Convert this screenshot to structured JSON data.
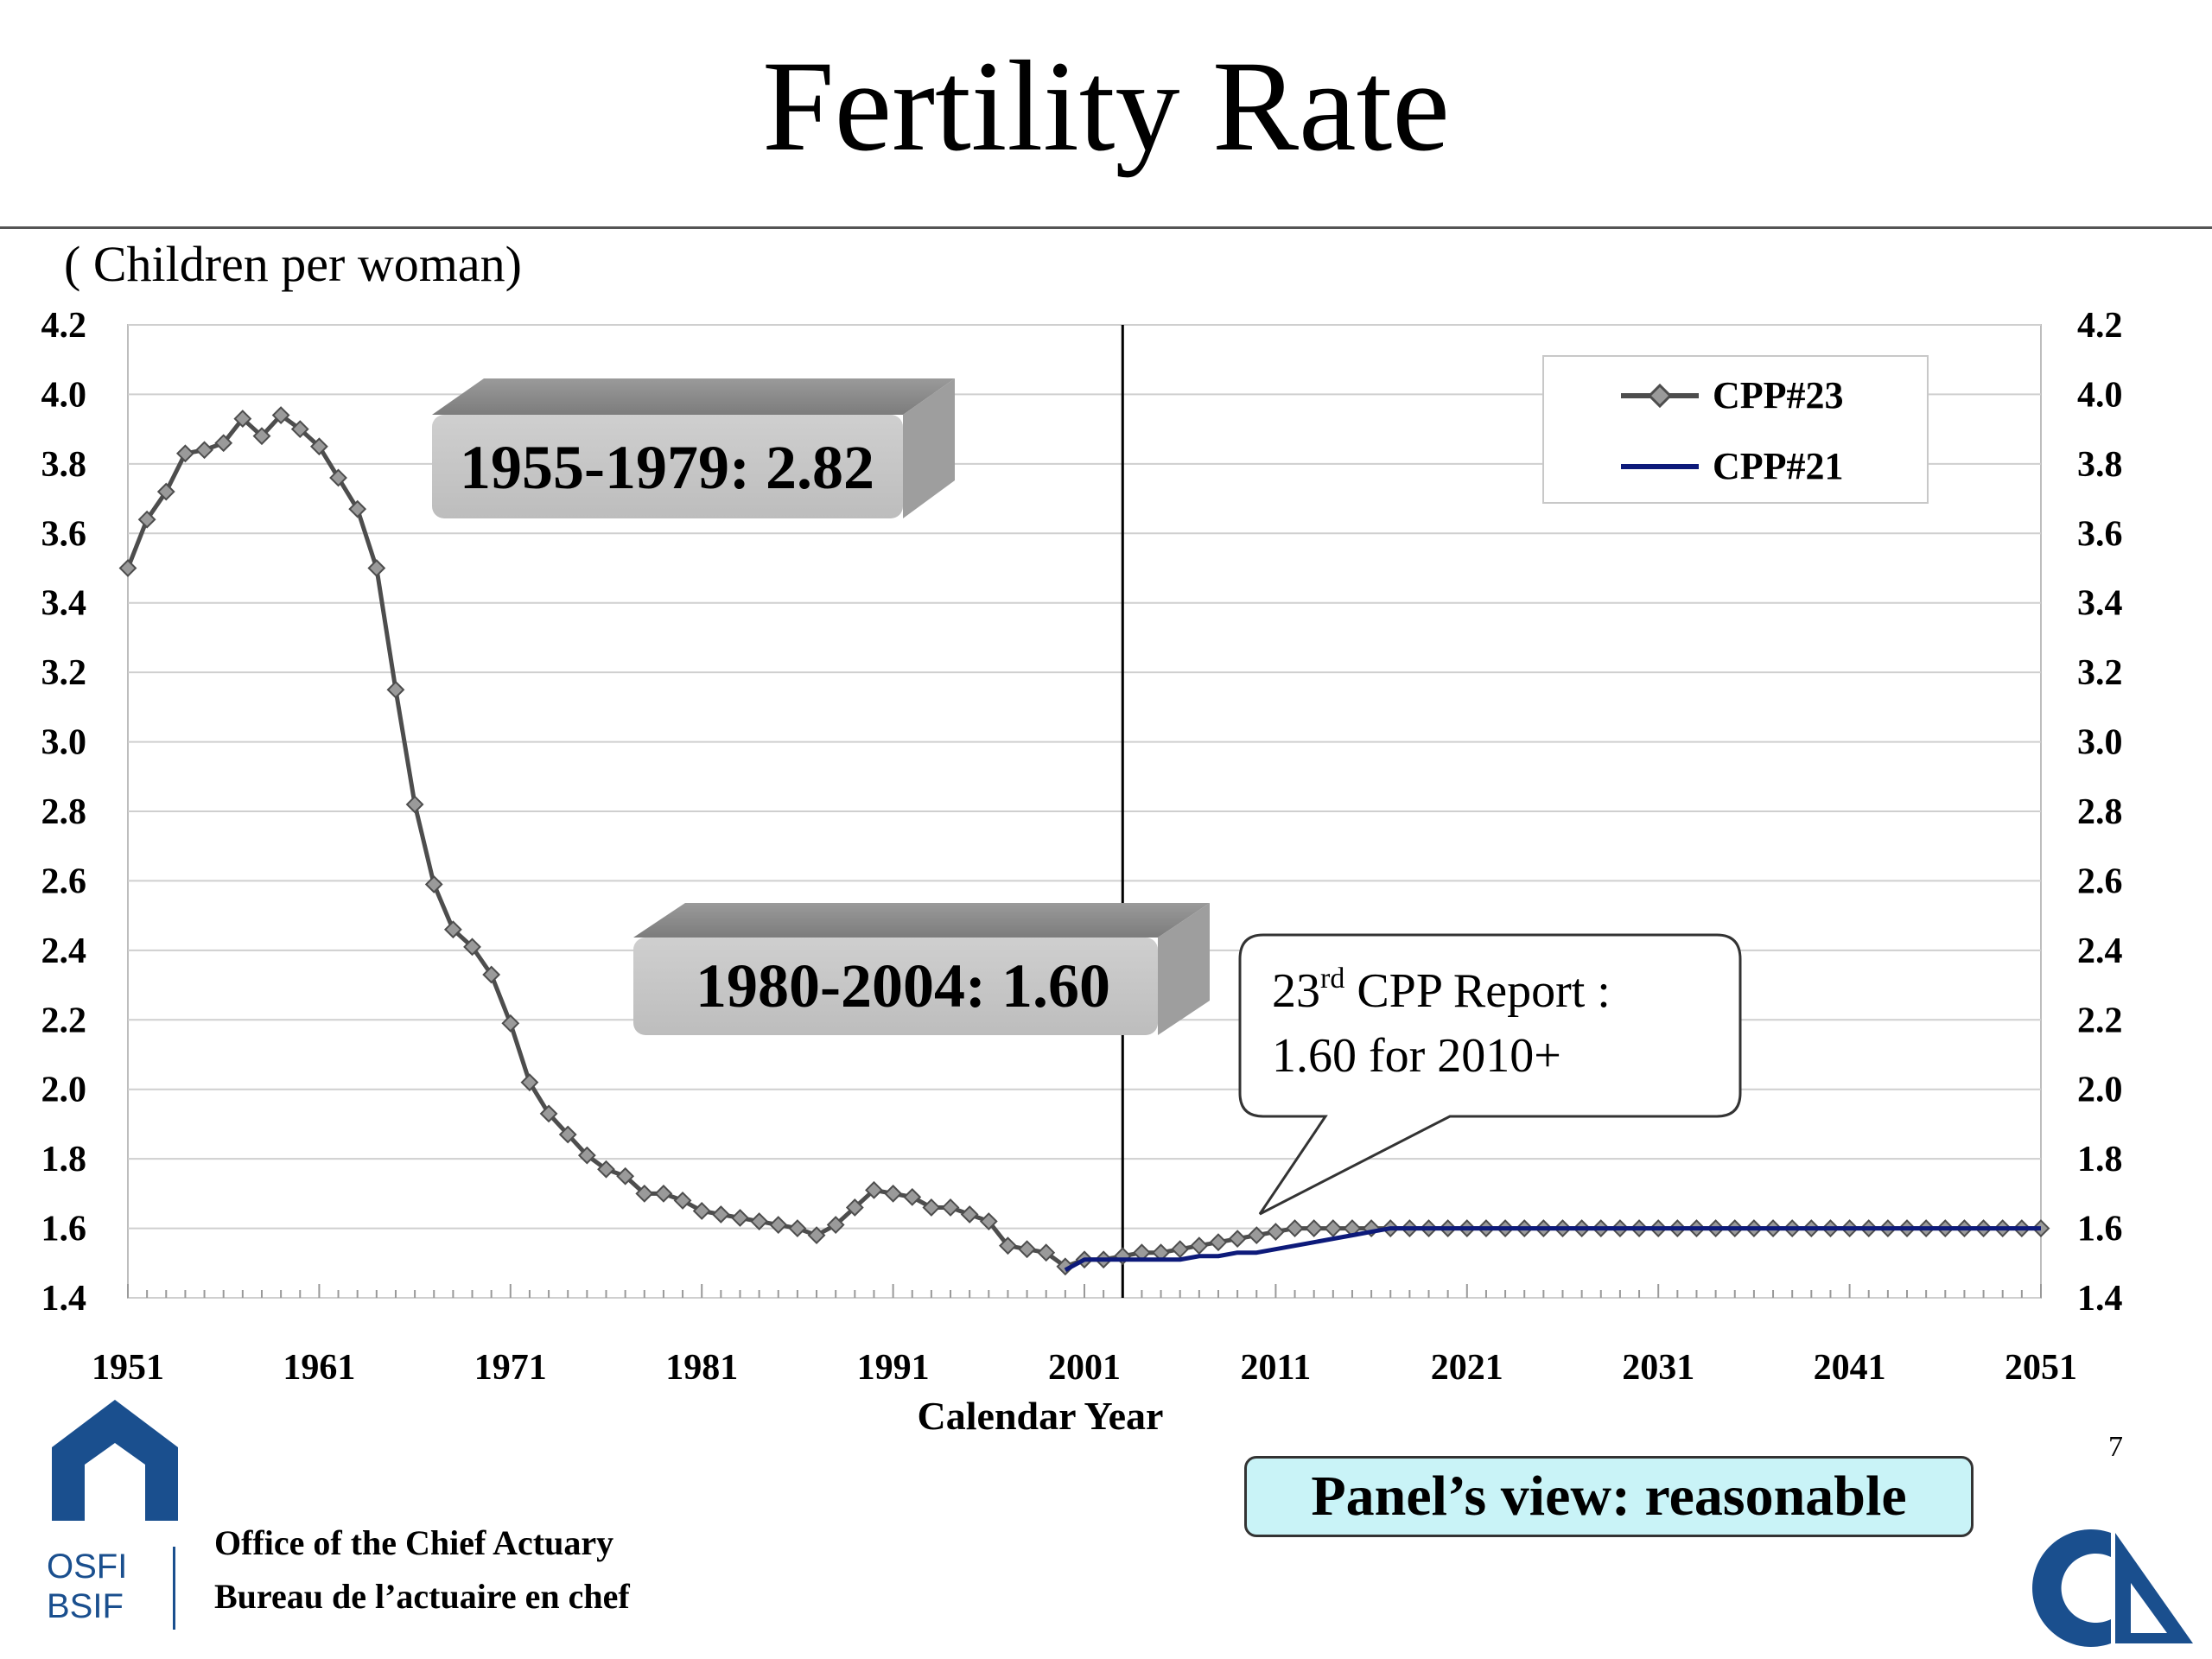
{
  "title": "Fertility Rate",
  "unit_label": "( Children per woman)",
  "chart_data": {
    "type": "line",
    "xlabel": "Calendar Year",
    "ylabel": "",
    "xlim": [
      1951,
      2051
    ],
    "ylim": [
      1.4,
      4.2
    ],
    "x_ticks": [
      "1951",
      "1961",
      "1971",
      "1981",
      "1991",
      "2001",
      "2011",
      "2021",
      "2031",
      "2041",
      "2051"
    ],
    "y_ticks": [
      "1.4",
      "1.6",
      "1.8",
      "2.0",
      "2.2",
      "2.4",
      "2.6",
      "2.8",
      "3.0",
      "3.2",
      "3.4",
      "3.6",
      "3.8",
      "4.0",
      "4.2"
    ],
    "vertical_line_year": 2003,
    "series": [
      {
        "name": "CPP#23",
        "color": "#4d4d4d",
        "marker": "diamond",
        "x": [
          1951,
          1952,
          1953,
          1954,
          1955,
          1956,
          1957,
          1958,
          1959,
          1960,
          1961,
          1962,
          1963,
          1964,
          1965,
          1966,
          1967,
          1968,
          1969,
          1970,
          1971,
          1972,
          1973,
          1974,
          1975,
          1976,
          1977,
          1978,
          1979,
          1980,
          1981,
          1982,
          1983,
          1984,
          1985,
          1986,
          1987,
          1988,
          1989,
          1990,
          1991,
          1992,
          1993,
          1994,
          1995,
          1996,
          1997,
          1998,
          1999,
          2000,
          2001,
          2002,
          2003,
          2004,
          2005,
          2006,
          2007,
          2008,
          2009,
          2010,
          2011,
          2012,
          2013,
          2014,
          2015,
          2016,
          2017,
          2018,
          2019,
          2020,
          2021,
          2022,
          2023,
          2024,
          2025,
          2026,
          2027,
          2028,
          2029,
          2030,
          2031,
          2032,
          2033,
          2034,
          2035,
          2036,
          2037,
          2038,
          2039,
          2040,
          2041,
          2042,
          2043,
          2044,
          2045,
          2046,
          2047,
          2048,
          2049,
          2050,
          2051
        ],
        "y": [
          3.5,
          3.64,
          3.72,
          3.83,
          3.84,
          3.86,
          3.93,
          3.88,
          3.94,
          3.9,
          3.85,
          3.76,
          3.67,
          3.5,
          3.15,
          2.82,
          2.59,
          2.46,
          2.41,
          2.33,
          2.19,
          2.02,
          1.93,
          1.87,
          1.81,
          1.77,
          1.75,
          1.7,
          1.7,
          1.68,
          1.65,
          1.64,
          1.63,
          1.62,
          1.61,
          1.6,
          1.58,
          1.61,
          1.66,
          1.71,
          1.7,
          1.69,
          1.66,
          1.66,
          1.64,
          1.62,
          1.55,
          1.54,
          1.53,
          1.49,
          1.51,
          1.51,
          1.52,
          1.53,
          1.53,
          1.54,
          1.55,
          1.56,
          1.57,
          1.58,
          1.59,
          1.6,
          1.6,
          1.6,
          1.6,
          1.6,
          1.6,
          1.6,
          1.6,
          1.6,
          1.6,
          1.6,
          1.6,
          1.6,
          1.6,
          1.6,
          1.6,
          1.6,
          1.6,
          1.6,
          1.6,
          1.6,
          1.6,
          1.6,
          1.6,
          1.6,
          1.6,
          1.6,
          1.6,
          1.6,
          1.6,
          1.6,
          1.6,
          1.6,
          1.6,
          1.6,
          1.6,
          1.6,
          1.6,
          1.6,
          1.6
        ]
      },
      {
        "name": "CPP#21",
        "color": "#0d1a7a",
        "marker": "none",
        "x": [
          2000,
          2001,
          2002,
          2003,
          2004,
          2005,
          2006,
          2007,
          2008,
          2009,
          2010,
          2011,
          2012,
          2013,
          2014,
          2015,
          2016,
          2017,
          2018,
          2019,
          2020,
          2021,
          2022,
          2023,
          2024,
          2025,
          2026,
          2027,
          2028,
          2029,
          2030,
          2031,
          2032,
          2033,
          2034,
          2035,
          2036,
          2037,
          2038,
          2039,
          2040,
          2041,
          2042,
          2043,
          2044,
          2045,
          2046,
          2047,
          2048,
          2049,
          2050,
          2051
        ],
        "y": [
          1.48,
          1.51,
          1.51,
          1.51,
          1.51,
          1.51,
          1.51,
          1.52,
          1.52,
          1.53,
          1.53,
          1.54,
          1.55,
          1.56,
          1.57,
          1.58,
          1.59,
          1.6,
          1.6,
          1.6,
          1.6,
          1.6,
          1.6,
          1.6,
          1.6,
          1.6,
          1.6,
          1.6,
          1.6,
          1.6,
          1.6,
          1.6,
          1.6,
          1.6,
          1.6,
          1.6,
          1.6,
          1.6,
          1.6,
          1.6,
          1.6,
          1.6,
          1.6,
          1.6,
          1.6,
          1.6,
          1.6,
          1.6,
          1.6,
          1.6,
          1.6,
          1.6
        ]
      }
    ],
    "annotations": {
      "box1": "1955-1979: 2.82",
      "box2": "1980-2004: 1.60",
      "callout_line1_num": "23",
      "callout_line1_sup": "rd",
      "callout_line1_rest": " CPP Report :",
      "callout_line2": "1.60 for 2010+"
    }
  },
  "panel_text": "Panel’s view: reasonable",
  "page_number": "7",
  "footer": {
    "line1": "Office of the Chief Actuary",
    "line2": "Bureau de l’actuaire en chef",
    "logo_text1": "OSFI",
    "logo_text2": "BSIF"
  },
  "colors": {
    "cpp23": "#4d4d4d",
    "cpp21": "#0d1a7a",
    "osfi_blue": "#1a4f8e",
    "panel_bg": "#c9f3f7"
  }
}
